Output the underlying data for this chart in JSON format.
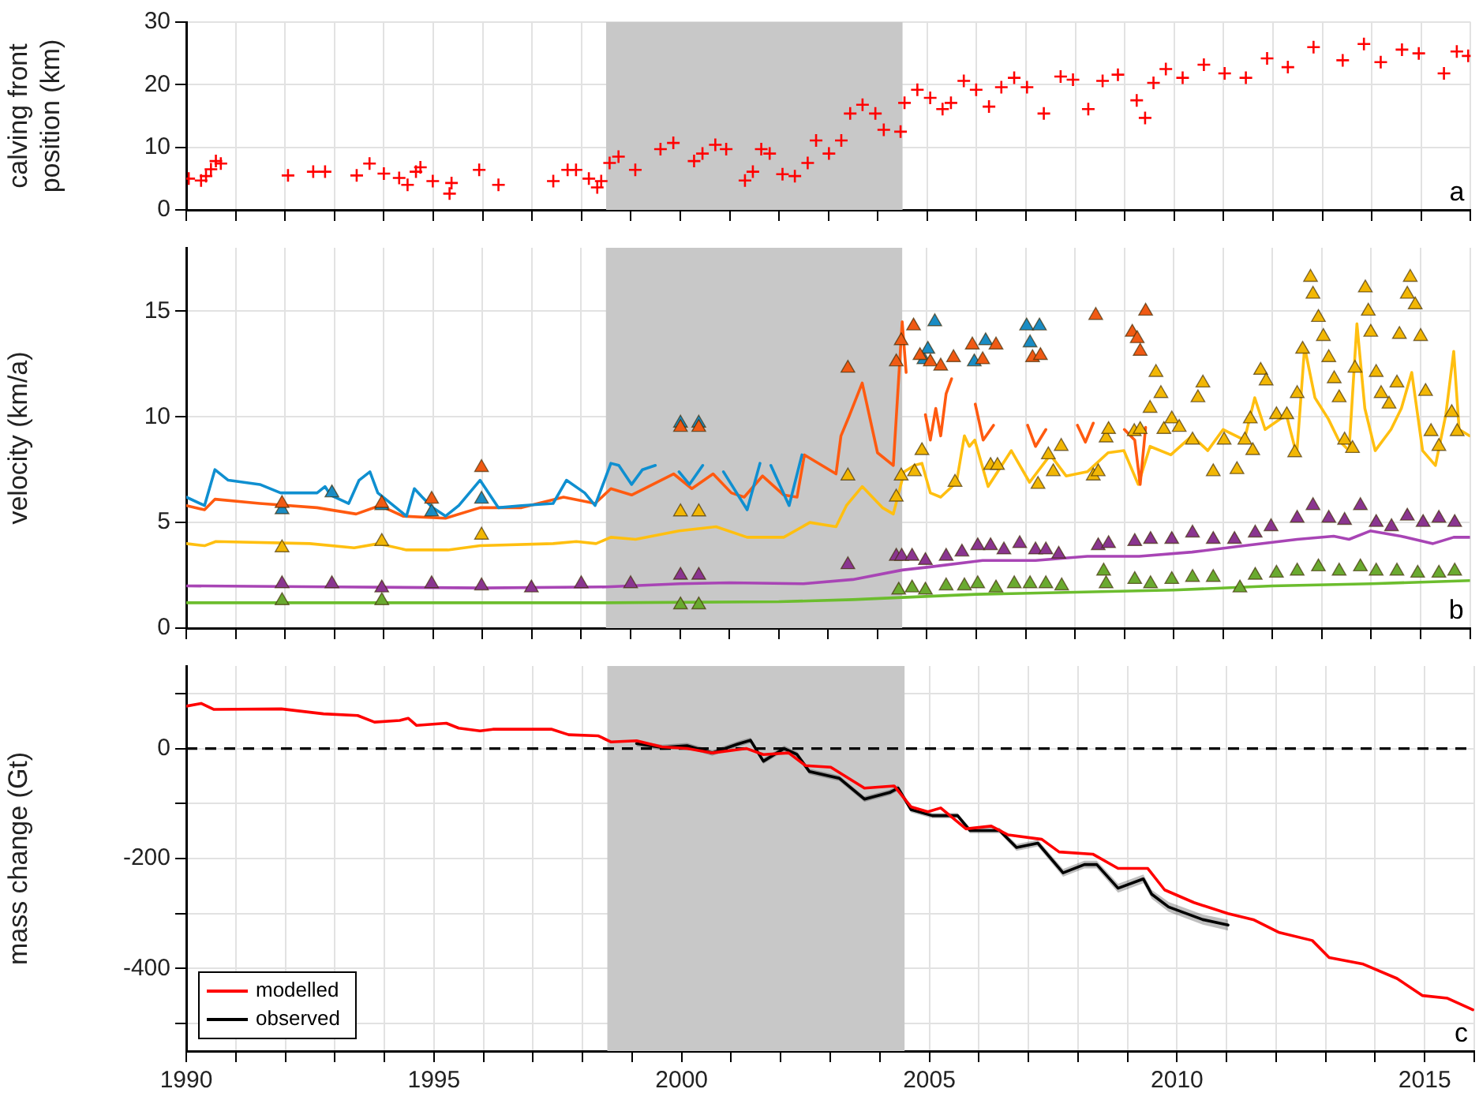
{
  "chart_data": [
    {
      "type": "scatter",
      "ylabel": "calving front position (km)",
      "annotations": [
        "a"
      ],
      "xlim": [
        1990,
        2016
      ],
      "xticks": [
        1990,
        {
          "value": 1991,
          "label": null
        },
        {
          "value": 1992,
          "label": null
        },
        {
          "value": 1993,
          "label": null
        },
        {
          "value": 1994,
          "label": null
        },
        1995,
        {
          "value": 1996,
          "label": null
        },
        {
          "value": 1997,
          "label": null
        },
        {
          "value": 1998,
          "label": null
        },
        {
          "value": 1999,
          "label": null
        },
        2000,
        {
          "value": 2001,
          "label": null
        },
        {
          "value": 2002,
          "label": null
        },
        {
          "value": 2003,
          "label": null
        },
        {
          "value": 2004,
          "label": null
        },
        2005,
        {
          "value": 2006,
          "label": null
        },
        {
          "value": 2007,
          "label": null
        },
        {
          "value": 2008,
          "label": null
        },
        {
          "value": 2009,
          "label": null
        },
        2010,
        {
          "value": 2011,
          "label": null
        },
        {
          "value": 2012,
          "label": null
        },
        {
          "value": 2013,
          "label": null
        },
        {
          "value": 2014,
          "label": null
        },
        2015,
        {
          "value": 2016,
          "label": null
        }
      ],
      "ylim": [
        0,
        30
      ],
      "yticks": [
        0,
        10,
        20,
        30
      ],
      "grid": true,
      "tick_labels": "y",
      "bands": [
        {
          "axis": "x",
          "from": 1998.5,
          "to": 2004.5,
          "color": "#c8c8c8"
        }
      ],
      "series": [
        {
          "marker": "cross",
          "color": "#ff0000",
          "x": [
            1990.05,
            1990.3,
            1990.4,
            1990.5,
            1990.6,
            1990.7,
            1992.06,
            1992.57,
            1992.81,
            1993.45,
            1993.71,
            1994.0,
            1994.31,
            1994.48,
            1994.65,
            1994.74,
            1994.99,
            1995.33,
            1995.37,
            1995.93,
            1996.32,
            1997.43,
            1997.72,
            1997.89,
            1998.15,
            1998.32,
            1998.4,
            1998.57,
            1998.75,
            1999.09,
            1999.6,
            1999.86,
            2000.28,
            2000.45,
            2000.71,
            2000.93,
            2001.31,
            2001.47,
            2001.64,
            2001.81,
            2002.07,
            2002.32,
            2002.58,
            2002.75,
            2003.01,
            2003.26,
            2003.44,
            2003.69,
            2003.95,
            2004.12,
            2004.46,
            2004.54,
            2004.8,
            2005.06,
            2005.31,
            2005.48,
            2005.74,
            2005.99,
            2006.25,
            2006.5,
            2006.76,
            2007.02,
            2007.36,
            2007.7,
            2007.95,
            2008.26,
            2008.55,
            2008.86,
            2009.24,
            2009.41,
            2009.58,
            2009.83,
            2010.17,
            2010.6,
            2011.02,
            2011.45,
            2011.88,
            2012.3,
            2012.82,
            2013.41,
            2013.84,
            2014.18,
            2014.61,
            2014.95,
            2015.46,
            2015.72,
            2015.95
          ],
          "values": [
            5.0,
            4.7,
            5.4,
            6.5,
            7.8,
            7.4,
            5.5,
            6.1,
            6.1,
            5.5,
            7.4,
            5.8,
            5.1,
            4.0,
            6.1,
            6.8,
            4.6,
            2.6,
            4.3,
            6.4,
            4.0,
            4.6,
            6.4,
            6.4,
            5.0,
            3.6,
            4.6,
            7.5,
            8.5,
            6.4,
            9.7,
            10.7,
            7.8,
            9.0,
            10.4,
            9.7,
            4.7,
            6.1,
            9.7,
            9.0,
            5.7,
            5.4,
            7.5,
            11.1,
            9.0,
            11.1,
            15.4,
            16.8,
            15.4,
            12.8,
            12.5,
            17.1,
            19.2,
            17.9,
            16.1,
            17.1,
            20.6,
            19.2,
            16.5,
            19.6,
            21.1,
            19.6,
            15.4,
            21.3,
            20.8,
            16.1,
            20.6,
            21.6,
            17.5,
            14.7,
            20.3,
            22.5,
            21.1,
            23.2,
            21.8,
            21.1,
            24.2,
            22.8,
            26.0,
            23.9,
            26.5,
            23.6,
            25.6,
            25.0,
            21.8,
            25.3,
            24.6
          ]
        }
      ]
    },
    {
      "type": "line",
      "ylabel": "velocity (km/a)",
      "annotations": [
        "b"
      ],
      "xlim": [
        1990,
        2016
      ],
      "xticks": [
        1990,
        {
          "value": 1991,
          "label": null
        },
        {
          "value": 1992,
          "label": null
        },
        {
          "value": 1993,
          "label": null
        },
        {
          "value": 1994,
          "label": null
        },
        1995,
        {
          "value": 1996,
          "label": null
        },
        {
          "value": 1997,
          "label": null
        },
        {
          "value": 1998,
          "label": null
        },
        {
          "value": 1999,
          "label": null
        },
        2000,
        {
          "value": 2001,
          "label": null
        },
        {
          "value": 2002,
          "label": null
        },
        {
          "value": 2003,
          "label": null
        },
        {
          "value": 2004,
          "label": null
        },
        2005,
        {
          "value": 2006,
          "label": null
        },
        {
          "value": 2007,
          "label": null
        },
        {
          "value": 2008,
          "label": null
        },
        {
          "value": 2009,
          "label": null
        },
        2010,
        {
          "value": 2011,
          "label": null
        },
        {
          "value": 2012,
          "label": null
        },
        {
          "value": 2013,
          "label": null
        },
        {
          "value": 2014,
          "label": null
        },
        2015,
        {
          "value": 2016,
          "label": null
        }
      ],
      "ylim": [
        0,
        18
      ],
      "yticks": [
        0,
        5,
        10,
        15
      ],
      "grid": true,
      "tick_labels": "y",
      "bands": [
        {
          "axis": "x",
          "from": 1998.5,
          "to": 2004.5,
          "color": "#c8c8c8"
        }
      ],
      "series": [
        {
          "color": "#0f8fd0",
          "x": [
            1990,
            1990.37,
            1990.58,
            1990.85,
            1991.49,
            1991.91,
            1992.65,
            1992.81,
            1992.92,
            1993.29,
            1993.5,
            1993.72,
            1993.88,
            1994.25,
            1994.46,
            1994.62,
            1994.78,
            1994.99,
            1995.25,
            1995.52,
            1995.95,
            1996.32,
            1996.79,
            1997.43,
            1997.7,
            1998.07,
            1998.28,
            1998.6,
            1998.76,
            1999.02,
            1999.24,
            1999.5,
            1999.7,
            1999.98,
            2000.19,
            2000.46,
            2000.6,
            2000.88,
            2001.36,
            2001.62,
            2001.7,
            2001.84,
            2002.21,
            2002.47
          ],
          "values": [
            6.2,
            5.8,
            7.5,
            7.0,
            6.8,
            6.4,
            6.4,
            6.7,
            6.3,
            5.9,
            7.0,
            7.4,
            6.4,
            5.7,
            5.3,
            6.6,
            6.2,
            5.7,
            5.3,
            5.8,
            7.0,
            5.7,
            5.8,
            5.9,
            7.0,
            6.4,
            5.8,
            7.8,
            7.7,
            6.8,
            7.5,
            7.7,
            null,
            7.4,
            6.8,
            7.7,
            null,
            7.4,
            5.6,
            7.8,
            null,
            7.7,
            5.8,
            8.2
          ]
        },
        {
          "color": "#ff5a10",
          "x": [
            1990,
            1990.37,
            1990.58,
            1991.49,
            1992.65,
            1993.44,
            1993.92,
            1994.39,
            1995.25,
            1995.95,
            1996.79,
            1997.64,
            1998.28,
            1998.6,
            1999.02,
            1999.87,
            2000.24,
            2000.67,
            2001.04,
            2001.3,
            2001.67,
            2002.1,
            2002.37,
            2002.52,
            2003.16,
            2003.26,
            2003.42,
            2003.69,
            2004.0,
            2004.32,
            2004.5,
            2004.58,
            2004.8,
            2004.97,
            2005.07,
            2005.18,
            2005.28,
            2005.39,
            2005.5,
            2005.7,
            2005.98,
            2006.14,
            2006.35,
            2006.7,
            2007.04,
            2007.2,
            2007.41,
            2007.7,
            2008.05,
            2008.21,
            2008.37,
            2008.7,
            2009.0,
            2009.21,
            2009.32,
            2009.43
          ],
          "values": [
            5.8,
            5.6,
            6.1,
            5.9,
            5.7,
            5.4,
            5.8,
            5.3,
            5.2,
            5.7,
            5.7,
            6.2,
            5.9,
            6.6,
            6.3,
            7.3,
            6.6,
            7.3,
            6.4,
            6.2,
            7.2,
            6.3,
            6.2,
            8.2,
            7.3,
            9.1,
            10.0,
            11.6,
            8.3,
            7.7,
            14.5,
            12.1,
            null,
            10.1,
            8.9,
            10.4,
            9.1,
            11.1,
            11.8,
            null,
            10.6,
            8.9,
            9.6,
            null,
            9.6,
            8.6,
            9.4,
            null,
            9.6,
            8.8,
            9.7,
            null,
            9.4,
            8.9,
            6.8,
            9.5
          ]
        },
        {
          "color": "#ffbf10",
          "x": [
            1990,
            1990.37,
            1990.6,
            1992.5,
            1993.4,
            1993.9,
            1994.46,
            1995.3,
            1995.95,
            1997.43,
            1997.9,
            1998.3,
            1998.6,
            1999.1,
            1999.98,
            2000.73,
            2001.36,
            2002.1,
            2002.63,
            2003.16,
            2003.37,
            2003.69,
            2004.1,
            2004.32,
            2004.54,
            2004.75,
            2004.9,
            2005.07,
            2005.28,
            2005.6,
            2005.76,
            2005.86,
            2005.97,
            2006.24,
            2006.71,
            2007.08,
            2007.5,
            2007.82,
            2008.25,
            2008.67,
            2008.99,
            2009.28,
            2009.52,
            2009.94,
            2010.37,
            2010.69,
            2011.0,
            2011.43,
            2011.64,
            2011.85,
            2012.28,
            2012.49,
            2012.65,
            2012.86,
            2013.13,
            2013.34,
            2013.55,
            2013.71,
            2013.87,
            2014.08,
            2014.4,
            2014.61,
            2014.82,
            2015.04,
            2015.3,
            2015.51,
            2015.67,
            2015.78,
            2015.99
          ],
          "values": [
            4.0,
            3.9,
            4.1,
            4.0,
            3.8,
            4.0,
            3.7,
            3.7,
            3.9,
            4.0,
            4.1,
            4.0,
            4.3,
            4.2,
            4.6,
            4.8,
            4.3,
            4.3,
            5.0,
            4.8,
            5.8,
            6.7,
            5.7,
            5.4,
            7.4,
            7.7,
            7.8,
            6.4,
            6.2,
            6.9,
            9.1,
            8.6,
            8.9,
            6.7,
            8.4,
            6.9,
            8.2,
            7.2,
            7.4,
            8.3,
            8.4,
            6.8,
            8.6,
            8.2,
            9.1,
            8.4,
            9.4,
            8.9,
            10.9,
            9.4,
            10.1,
            8.2,
            13.3,
            10.9,
            9.9,
            8.9,
            8.4,
            14.4,
            10.4,
            8.4,
            9.4,
            10.4,
            12.1,
            8.4,
            7.7,
            10.1,
            13.1,
            9.4,
            9.1
          ]
        },
        {
          "color": "#a845b5",
          "x": [
            1990,
            1993,
            1996,
            1998.5,
            2000,
            2001,
            2002.5,
            2003.5,
            2004.5,
            2005.07,
            2006.13,
            2007.2,
            2008.25,
            2009.3,
            2010.37,
            2011.43,
            2012.5,
            2013.24,
            2013.55,
            2013.98,
            2014.6,
            2015.25,
            2015.67,
            2015.99
          ],
          "values": [
            2.0,
            1.95,
            1.9,
            1.95,
            2.1,
            2.15,
            2.1,
            2.3,
            2.75,
            2.9,
            3.2,
            3.2,
            3.4,
            3.4,
            3.6,
            3.9,
            4.2,
            4.35,
            4.2,
            4.6,
            4.35,
            4.0,
            4.3,
            4.3
          ]
        },
        {
          "color": "#6cbd2e",
          "x": [
            1990,
            1998.5,
            2002,
            2003.5,
            2004.5,
            2006,
            2008,
            2010,
            2012,
            2014,
            2016
          ],
          "values": [
            1.2,
            1.2,
            1.25,
            1.35,
            1.45,
            1.6,
            1.7,
            1.8,
            2.0,
            2.1,
            2.25
          ]
        },
        {
          "type": "scatter",
          "marker": "triangle",
          "color": "#1a8cc4",
          "x": [
            1991.94,
            1992.95,
            1993.96,
            1994.97,
            1995.98,
            2000.01,
            2000.38,
            2004.94,
            2005.02,
            2005.16,
            2005.96,
            2006.19,
            2007.02,
            2007.09,
            2007.28
          ],
          "values": [
            5.6,
            6.4,
            5.8,
            5.5,
            6.1,
            9.7,
            9.7,
            12.7,
            13.2,
            14.5,
            12.6,
            13.6,
            14.3,
            13.5,
            14.3
          ]
        },
        {
          "type": "scatter",
          "marker": "triangle",
          "color": "#f05a14",
          "x": [
            1991.94,
            1993.96,
            1994.97,
            1995.98,
            2000.01,
            2000.38,
            2003.4,
            2004.38,
            2004.48,
            2004.73,
            2004.86,
            2005.07,
            2005.28,
            2005.54,
            2005.92,
            2006.13,
            2006.4,
            2007.14,
            2007.3,
            2008.42,
            2009.16,
            2009.26,
            2009.32,
            2009.43
          ],
          "values": [
            5.9,
            5.9,
            6.1,
            7.6,
            9.5,
            9.5,
            12.3,
            12.6,
            13.6,
            14.3,
            12.9,
            12.6,
            12.4,
            12.8,
            13.4,
            12.7,
            13.4,
            12.8,
            12.9,
            14.8,
            14.0,
            13.7,
            13.1,
            15.0
          ]
        },
        {
          "type": "scatter",
          "marker": "triangle",
          "color": "#f2b705",
          "x": [
            1991.94,
            1993.96,
            1995.98,
            2000.01,
            2000.38,
            2003.4,
            2004.38,
            2004.48,
            2004.75,
            2004.9,
            2005.57,
            2006.29,
            2006.43,
            2007.25,
            2007.46,
            2007.56,
            2007.72,
            2008.37,
            2008.47,
            2008.63,
            2008.68,
            2009.2,
            2009.32,
            2009.52,
            2009.64,
            2009.74,
            2009.8,
            2009.96,
            2010.11,
            2010.38,
            2010.49,
            2010.59,
            2010.8,
            2011.02,
            2011.28,
            2011.44,
            2011.55,
            2011.6,
            2011.76,
            2011.87,
            2012.08,
            2012.29,
            2012.45,
            2012.5,
            2012.61,
            2012.77,
            2012.82,
            2012.93,
            2013.03,
            2013.14,
            2013.25,
            2013.35,
            2013.46,
            2013.62,
            2013.67,
            2013.88,
            2013.94,
            2013.99,
            2014.1,
            2014.2,
            2014.36,
            2014.52,
            2014.57,
            2014.73,
            2014.79,
            2014.89,
            2015.0,
            2015.1,
            2015.21,
            2015.37,
            2015.63,
            2015.74
          ],
          "values": [
            3.8,
            4.1,
            4.4,
            5.5,
            5.5,
            7.2,
            6.2,
            7.2,
            7.4,
            8.4,
            6.9,
            7.7,
            7.7,
            6.8,
            8.2,
            7.4,
            8.6,
            7.2,
            7.4,
            9.0,
            9.4,
            9.3,
            9.4,
            10.4,
            12.1,
            11.1,
            9.4,
            9.9,
            9.5,
            8.9,
            10.9,
            11.6,
            7.4,
            8.9,
            7.5,
            8.9,
            9.9,
            8.4,
            12.2,
            11.7,
            10.1,
            10.1,
            8.3,
            11.1,
            13.2,
            16.6,
            15.8,
            14.7,
            13.8,
            12.8,
            11.8,
            10.9,
            8.9,
            8.5,
            12.3,
            16.1,
            15.0,
            14.0,
            12.1,
            11.1,
            10.6,
            11.6,
            13.9,
            15.8,
            16.6,
            15.3,
            13.8,
            11.2,
            9.3,
            8.6,
            10.2,
            9.3
          ]
        },
        {
          "type": "scatter",
          "marker": "triangle",
          "color": "#8a3590",
          "x": [
            1991.94,
            1992.95,
            1993.96,
            1994.97,
            1995.98,
            1996.99,
            1998.0,
            1999.0,
            2000.01,
            2000.38,
            2003.4,
            2004.38,
            2004.49,
            2004.7,
            2004.97,
            2005.39,
            2005.71,
            2006.03,
            2006.29,
            2006.56,
            2006.88,
            2007.2,
            2007.41,
            2007.67,
            2008.47,
            2008.68,
            2009.21,
            2009.53,
            2009.96,
            2010.38,
            2010.8,
            2011.23,
            2011.65,
            2011.97,
            2012.5,
            2012.82,
            2013.14,
            2013.46,
            2013.78,
            2014.1,
            2014.41,
            2014.73,
            2015.05,
            2015.37,
            2015.69
          ],
          "values": [
            2.1,
            2.1,
            1.9,
            2.1,
            2.0,
            1.9,
            2.1,
            2.1,
            2.5,
            2.5,
            3.0,
            3.4,
            3.4,
            3.4,
            3.2,
            3.4,
            3.6,
            3.9,
            3.9,
            3.7,
            4.0,
            3.7,
            3.7,
            3.5,
            3.9,
            4.0,
            4.1,
            4.2,
            4.2,
            4.5,
            4.2,
            4.2,
            4.5,
            4.8,
            5.2,
            5.8,
            5.2,
            5.1,
            5.8,
            5.0,
            4.8,
            5.3,
            5.0,
            5.2,
            5.0
          ]
        },
        {
          "type": "scatter",
          "marker": "triangle",
          "color": "#6aaa30",
          "x": [
            1991.94,
            1993.96,
            2000.01,
            2000.38,
            2004.43,
            2004.7,
            2004.97,
            2005.39,
            2005.76,
            2006.03,
            2006.4,
            2006.77,
            2007.09,
            2007.41,
            2007.73,
            2008.58,
            2008.63,
            2009.21,
            2009.53,
            2009.96,
            2010.38,
            2010.8,
            2011.34,
            2011.65,
            2012.08,
            2012.5,
            2012.93,
            2013.35,
            2013.78,
            2014.1,
            2014.52,
            2014.94,
            2015.37,
            2015.69
          ],
          "values": [
            1.3,
            1.3,
            1.1,
            1.1,
            1.8,
            1.9,
            1.8,
            2.0,
            2.0,
            2.1,
            1.9,
            2.1,
            2.1,
            2.1,
            2.0,
            2.7,
            2.1,
            2.3,
            2.1,
            2.3,
            2.4,
            2.4,
            1.9,
            2.5,
            2.6,
            2.7,
            2.9,
            2.7,
            2.9,
            2.7,
            2.7,
            2.6,
            2.6,
            2.7
          ]
        }
      ]
    },
    {
      "type": "line",
      "ylabel": "mass change (Gt)",
      "annotations": [
        "c"
      ],
      "legend": "bottom left",
      "xlim": [
        1990,
        2016
      ],
      "xticks": [
        1990,
        {
          "value": 1991,
          "label": null
        },
        {
          "value": 1992,
          "label": null
        },
        {
          "value": 1993,
          "label": null
        },
        {
          "value": 1994,
          "label": null
        },
        1995,
        {
          "value": 1996,
          "label": null
        },
        {
          "value": 1997,
          "label": null
        },
        {
          "value": 1998,
          "label": null
        },
        {
          "value": 1999,
          "label": null
        },
        2000,
        {
          "value": 2001,
          "label": null
        },
        {
          "value": 2002,
          "label": null
        },
        {
          "value": 2003,
          "label": null
        },
        {
          "value": 2004,
          "label": null
        },
        2005,
        {
          "value": 2006,
          "label": null
        },
        {
          "value": 2007,
          "label": null
        },
        {
          "value": 2008,
          "label": null
        },
        {
          "value": 2009,
          "label": null
        },
        2010,
        {
          "value": 2011,
          "label": null
        },
        {
          "value": 2012,
          "label": null
        },
        {
          "value": 2013,
          "label": null
        },
        {
          "value": 2014,
          "label": null
        },
        2015,
        {
          "value": 2016,
          "label": null
        }
      ],
      "ylim": [
        -550,
        150
      ],
      "yticks": [
        {
          "value": -500,
          "label": null
        },
        -400,
        {
          "value": -300,
          "label": null
        },
        -200,
        {
          "value": -100,
          "label": null
        },
        0,
        {
          "value": 100,
          "label": null
        }
      ],
      "grid": true,
      "bands": [
        {
          "axis": "x",
          "from": 1998.5,
          "to": 2004.5,
          "color": "#c8c8c8"
        }
      ],
      "ref_lines": [
        {
          "axis": "y",
          "value": 0,
          "line_style": "dashed",
          "color": "#000000"
        }
      ],
      "series": [
        {
          "name": "modelled",
          "color": "#ff0000",
          "x": [
            1990.0,
            1990.3,
            1990.56,
            1991.92,
            1992.77,
            1993.46,
            1993.8,
            1994.31,
            1994.48,
            1994.65,
            1995.25,
            1995.5,
            1995.93,
            1996.19,
            1997.38,
            1997.72,
            1998.32,
            1998.57,
            1999.09,
            1999.6,
            2000.11,
            2000.62,
            2001.31,
            2001.65,
            2002.16,
            2002.5,
            2003.01,
            2003.69,
            2004.29,
            2004.63,
            2004.97,
            2005.23,
            2005.74,
            2006.25,
            2006.59,
            2007.27,
            2007.62,
            2008.3,
            2008.81,
            2009.41,
            2009.75,
            2010.34,
            2011.03,
            2011.54,
            2012.05,
            2012.73,
            2013.07,
            2013.76,
            2014.44,
            2014.95,
            2015.46,
            2015.97
          ],
          "values": [
            77,
            82,
            71,
            72,
            63,
            60,
            48,
            51,
            55,
            42,
            46,
            37,
            32,
            35,
            35,
            25,
            23,
            12,
            14,
            3,
            0,
            -8,
            0,
            -11,
            -8,
            -31,
            -34,
            -72,
            -68,
            -106,
            -115,
            -108,
            -146,
            -141,
            -157,
            -165,
            -188,
            -192,
            -218,
            -218,
            -257,
            -280,
            -300,
            -311,
            -334,
            -349,
            -380,
            -392,
            -418,
            -449,
            -454,
            -475
          ]
        },
        {
          "name": "observed",
          "color": "#000000",
          "x": [
            1999.09,
            1999.6,
            2000.11,
            2000.62,
            2001.13,
            2001.39,
            2001.65,
            2002.07,
            2002.33,
            2002.58,
            2003.18,
            2003.69,
            2004.2,
            2004.37,
            2004.63,
            2005.06,
            2005.57,
            2005.82,
            2006.42,
            2006.76,
            2007.19,
            2007.7,
            2008.13,
            2008.38,
            2008.81,
            2009.32,
            2009.49,
            2009.83,
            2010.52,
            2011.03
          ],
          "values": [
            9,
            2,
            5,
            -8,
            8,
            15,
            -23,
            0,
            -11,
            -42,
            -54,
            -92,
            -80,
            -72,
            -111,
            -122,
            -122,
            -149,
            -149,
            -180,
            -172,
            -226,
            -211,
            -211,
            -254,
            -237,
            -265,
            -288,
            -311,
            -321
          ],
          "lower": [
            4,
            -3,
            0,
            -13,
            3,
            10,
            -28,
            -5,
            -16,
            -47,
            -59,
            -97,
            -85,
            -77,
            -116,
            -127,
            -127,
            -154,
            -154,
            -186,
            -178,
            -233,
            -218,
            -218,
            -262,
            -245,
            -273,
            -297,
            -320,
            -331
          ],
          "upper": [
            14,
            7,
            10,
            -3,
            13,
            20,
            -18,
            5,
            -6,
            -37,
            -49,
            -87,
            -75,
            -67,
            -106,
            -117,
            -117,
            -144,
            -144,
            -174,
            -166,
            -219,
            -204,
            -204,
            -246,
            -229,
            -257,
            -279,
            -302,
            -311
          ]
        }
      ]
    }
  ]
}
